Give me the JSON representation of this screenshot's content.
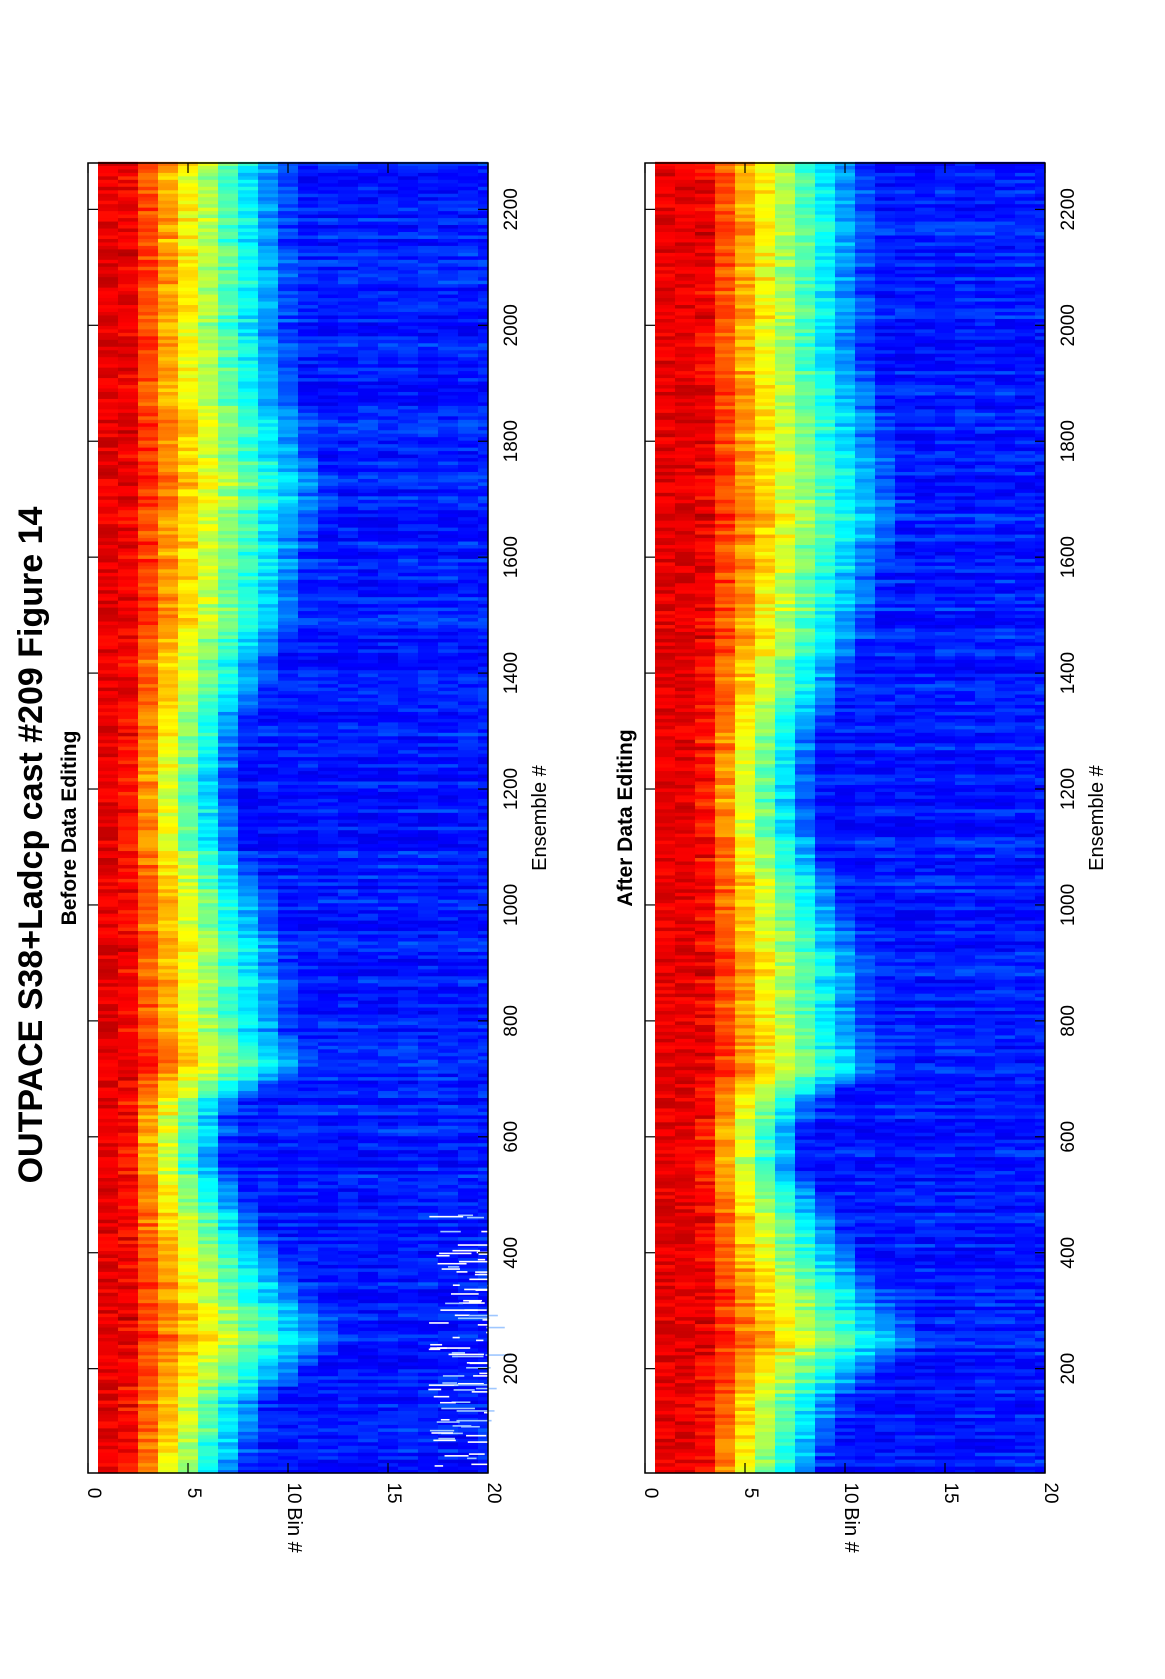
{
  "figure": {
    "title": "OUTPACE S38+Ladcp cast #209  Figure 14"
  },
  "chart_data": [
    {
      "type": "heatmap",
      "title": "Before Data Editing",
      "xlabel": "Ensemble #",
      "ylabel": "Bin #",
      "xlim": [
        20,
        2280
      ],
      "ylim": [
        0,
        20
      ],
      "x_ticks": [
        200,
        400,
        600,
        800,
        1000,
        1200,
        1400,
        1600,
        1800,
        2000,
        2200
      ],
      "y_ticks": [
        0,
        5,
        10,
        15,
        20
      ],
      "colormap": "jet",
      "grid": false,
      "profile_ensembles": [
        20,
        150,
        250,
        300,
        400,
        550,
        650,
        720,
        780,
        900,
        1000,
        1100,
        1200,
        1300,
        1400,
        1500,
        1600,
        1700,
        1800,
        1950,
        2100,
        2280
      ],
      "profile_halfwidth_bins": [
        6.5,
        8,
        12,
        10.5,
        8.5,
        5.5,
        6,
        10,
        9,
        9,
        8,
        6.5,
        6,
        6.5,
        8,
        9.5,
        10,
        11,
        10,
        9,
        9,
        9
      ],
      "peak_bins": [
        1,
        2
      ],
      "bad_data_band": {
        "ensembles": [
          30,
          470
        ],
        "bins": [
          17,
          20
        ]
      }
    },
    {
      "type": "heatmap",
      "title": "After Data Editing",
      "xlabel": "Ensemble #",
      "ylabel": "Bin #",
      "xlim": [
        20,
        2280
      ],
      "ylim": [
        0,
        20
      ],
      "x_ticks": [
        200,
        400,
        600,
        800,
        1000,
        1200,
        1400,
        1600,
        1800,
        2000,
        2200
      ],
      "y_ticks": [
        0,
        5,
        10,
        15,
        20
      ],
      "colormap": "jet",
      "grid": false,
      "profile_ensembles": [
        20,
        150,
        250,
        300,
        400,
        550,
        650,
        720,
        780,
        900,
        1000,
        1100,
        1200,
        1300,
        1400,
        1500,
        1600,
        1700,
        1800,
        1950,
        2100,
        2280
      ],
      "profile_halfwidth_bins": [
        6.5,
        8,
        12,
        10.5,
        8.5,
        5.5,
        6,
        10,
        9,
        9,
        8,
        6.5,
        6,
        6.5,
        8,
        9.5,
        10,
        11,
        10,
        9,
        9,
        9
      ],
      "peak_bins": [
        2,
        3
      ],
      "bad_data_band": null
    }
  ]
}
